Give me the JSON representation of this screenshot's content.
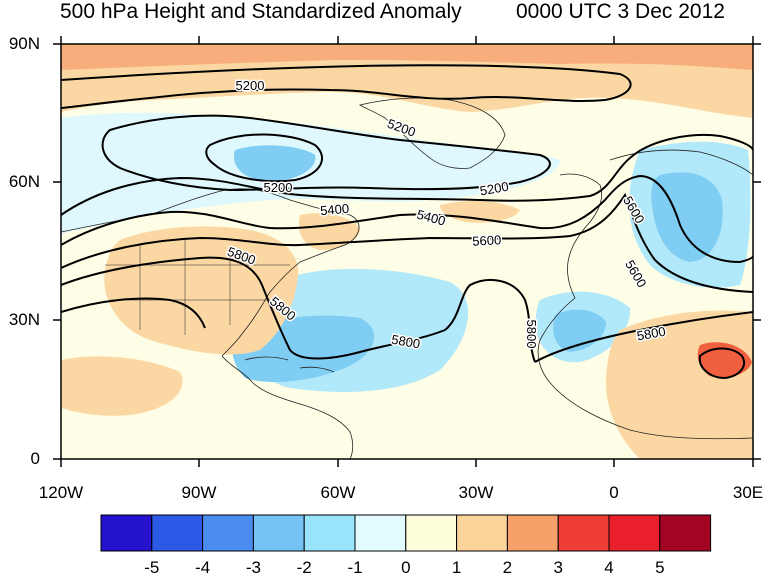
{
  "title": "500 hPa Height and Standardized Anomaly",
  "valid_time": "0000 UTC 3 Dec 2012",
  "lat_labels": [
    "90N",
    "60N",
    "30N",
    "0"
  ],
  "lon_labels": [
    "120W",
    "90W",
    "60W",
    "30W",
    "0",
    "30E"
  ],
  "contour_labels": [
    {
      "text": "5200"
    },
    {
      "text": "5200"
    },
    {
      "text": "5200"
    },
    {
      "text": "5200"
    },
    {
      "text": "5400"
    },
    {
      "text": "5400"
    },
    {
      "text": "5600"
    },
    {
      "text": "5600"
    },
    {
      "text": "5800"
    },
    {
      "text": "5800"
    },
    {
      "text": "5800"
    },
    {
      "text": "5800"
    },
    {
      "text": "5800"
    },
    {
      "text": "5600"
    }
  ],
  "colorbar": {
    "labels": [
      "-5",
      "-4",
      "-3",
      "-2",
      "-1",
      "0",
      "1",
      "2",
      "3",
      "4",
      "5"
    ],
    "colors": [
      "#2412cc",
      "#2c5ae6",
      "#4a8cf0",
      "#74c2f6",
      "#97e4fb",
      "#e2fbff",
      "#fefddc",
      "#fbd49b",
      "#f7a06a",
      "#ef3e36",
      "#e9202c",
      "#a20421"
    ]
  },
  "colors": {
    "neutral": "#fefee6",
    "positive_1": "#fbd8a3",
    "positive_2": "#f8ad7c",
    "positive_3": "#f0603e",
    "negative_1": "#dff8fd",
    "negative_2": "#b1e8fa",
    "negative_3": "#7fcdf3",
    "contour": "#000000"
  }
}
